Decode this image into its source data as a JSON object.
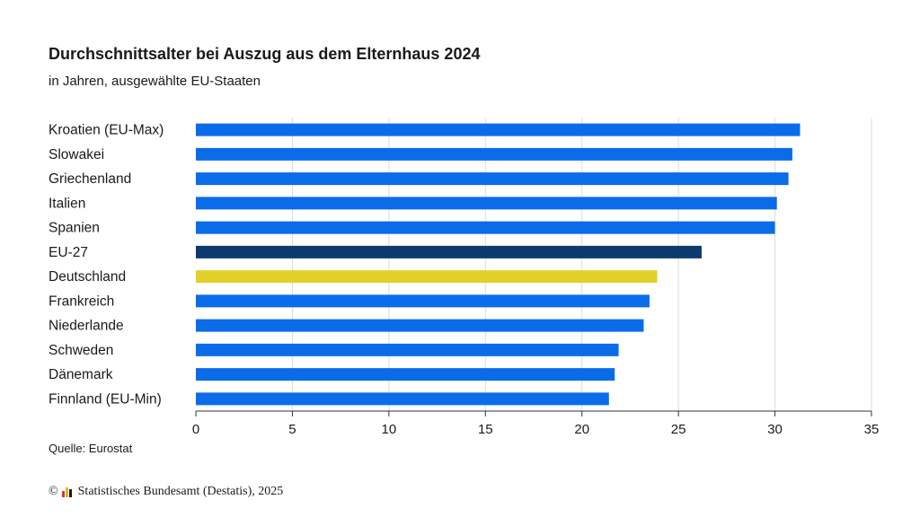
{
  "title": "Durchschnittsalter bei Auszug aus dem Elternhaus 2024",
  "subtitle": "in Jahren, ausgewählte EU-Staaten",
  "source": "Quelle: Eurostat",
  "copyright_symbol": "©",
  "footer": "Statistisches Bundesamt (Destatis), 2025",
  "colors": {
    "default": "#0a6ce8",
    "eu": "#0d3a6e",
    "germany": "#e2d02a",
    "grid": "#dcdcdc",
    "axis": "#333333",
    "logo": [
      "#d43a2f",
      "#e2b32a",
      "#1a1a1a"
    ]
  },
  "chart_data": {
    "type": "bar",
    "orientation": "horizontal",
    "categories": [
      "Kroatien (EU-Max)",
      "Slowakei",
      "Griechenland",
      "Italien",
      "Spanien",
      "EU-27",
      "Deutschland",
      "Frankreich",
      "Niederlande",
      "Schweden",
      "Dänemark",
      "Finnland (EU-Min)"
    ],
    "values": [
      31.3,
      30.9,
      30.7,
      30.1,
      30.0,
      26.2,
      23.9,
      23.5,
      23.2,
      21.9,
      21.7,
      21.4
    ],
    "bar_colors": [
      "default",
      "default",
      "default",
      "default",
      "default",
      "eu",
      "germany",
      "default",
      "default",
      "default",
      "default",
      "default"
    ],
    "xlim": [
      0,
      35
    ],
    "xticks": [
      0,
      5,
      10,
      15,
      20,
      25,
      30,
      35
    ],
    "grid": true,
    "xlabel": "",
    "ylabel": ""
  }
}
